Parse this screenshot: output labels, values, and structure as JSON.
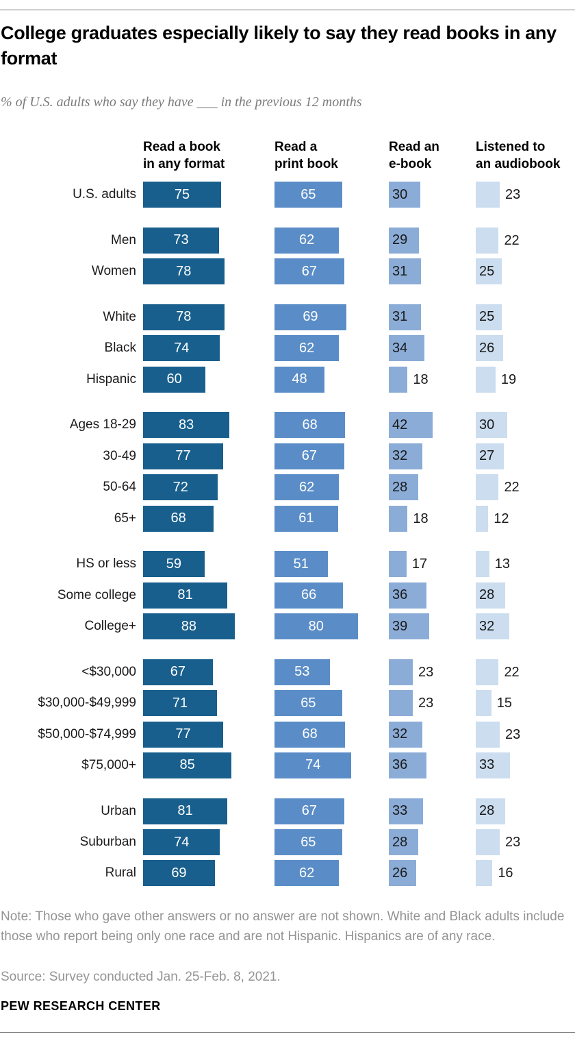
{
  "header": {
    "title": "College graduates especially likely to say they read books in any format",
    "subtitle": "% of U.S. adults who say they have ___ in the previous 12 months"
  },
  "chart_data": {
    "type": "bar",
    "orientation": "horizontal",
    "unit": "%",
    "xlim": [
      0,
      100
    ],
    "grid": false,
    "legend_position": "column-headers",
    "columns": [
      {
        "name": "Read a book in any format",
        "header_lines": "Read a book\nin any format",
        "color": "#185F8D",
        "label_mode": "inside-center-white"
      },
      {
        "name": "Read a print book",
        "header_lines": "Read a\nprint book",
        "color": "#5A8DC7",
        "label_mode": "inside-center-white"
      },
      {
        "name": "Read an e-book",
        "header_lines": "Read an\ne-book",
        "color": "#8BACD7",
        "label_mode": "inside-or-outside-dark"
      },
      {
        "name": "Listened to an audiobook",
        "header_lines": "Listened to\nan audiobook",
        "color": "#CBDDEF",
        "label_mode": "inside-or-outside-dark"
      }
    ],
    "value_label_inside_threshold": 25,
    "colors": {
      "bar_label_light": "#ffffff",
      "bar_label_dark": "#1a1a1a"
    },
    "groups": [
      {
        "rows": [
          {
            "label": "U.S. adults",
            "values": [
              75,
              65,
              30,
              23
            ]
          }
        ]
      },
      {
        "rows": [
          {
            "label": "Men",
            "values": [
              73,
              62,
              29,
              22
            ]
          },
          {
            "label": "Women",
            "values": [
              78,
              67,
              31,
              25
            ]
          }
        ]
      },
      {
        "rows": [
          {
            "label": "White",
            "values": [
              78,
              69,
              31,
              25
            ]
          },
          {
            "label": "Black",
            "values": [
              74,
              62,
              34,
              26
            ]
          },
          {
            "label": "Hispanic",
            "values": [
              60,
              48,
              18,
              19
            ]
          }
        ]
      },
      {
        "rows": [
          {
            "label": "Ages 18-29",
            "values": [
              83,
              68,
              42,
              30
            ]
          },
          {
            "label": "30-49",
            "values": [
              77,
              67,
              32,
              27
            ]
          },
          {
            "label": "50-64",
            "values": [
              72,
              62,
              28,
              22
            ]
          },
          {
            "label": "65+",
            "values": [
              68,
              61,
              18,
              12
            ]
          }
        ]
      },
      {
        "rows": [
          {
            "label": "HS or less",
            "values": [
              59,
              51,
              17,
              13
            ]
          },
          {
            "label": "Some college",
            "values": [
              81,
              66,
              36,
              28
            ]
          },
          {
            "label": "College+",
            "values": [
              88,
              80,
              39,
              32
            ]
          }
        ]
      },
      {
        "rows": [
          {
            "label": "<$30,000",
            "values": [
              67,
              53,
              23,
              22
            ]
          },
          {
            "label": "$30,000-$49,999",
            "values": [
              71,
              65,
              23,
              15
            ]
          },
          {
            "label": "$50,000-$74,999",
            "values": [
              77,
              68,
              32,
              23
            ]
          },
          {
            "label": "$75,000+",
            "values": [
              85,
              74,
              36,
              33
            ]
          }
        ]
      },
      {
        "rows": [
          {
            "label": "Urban",
            "values": [
              81,
              67,
              33,
              28
            ]
          },
          {
            "label": "Suburban",
            "values": [
              74,
              65,
              28,
              23
            ]
          },
          {
            "label": "Rural",
            "values": [
              69,
              62,
              26,
              16
            ]
          }
        ]
      }
    ]
  },
  "footer": {
    "note": "Note: Those who gave other answers or no answer are not shown. White and Black adults include those who report being only one race and are not Hispanic. Hispanics are of any race.",
    "source": "Source: Survey conducted Jan. 25-Feb. 8, 2021.",
    "brand": "PEW RESEARCH CENTER"
  }
}
